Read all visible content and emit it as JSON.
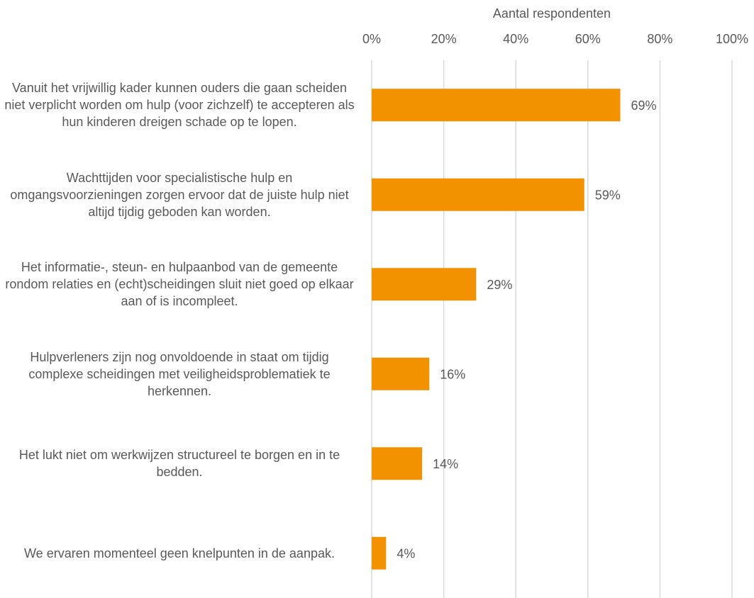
{
  "chart_data": {
    "type": "hbar",
    "xlabel": "Aantal respondenten",
    "categories": [
      "Vanuit het vrijwillig kader kunnen ouders die gaan scheiden niet verplicht worden om hulp (voor zichzelf) te accepteren als hun kinderen dreigen schade op te lopen.",
      "Wachttijden voor specialistische hulp en omgangsvoorzieningen zorgen ervoor dat de juiste hulp niet altijd tijdig geboden kan worden.",
      "Het informatie-, steun- en hulpaanbod van de gemeente rondom relaties en (echt)scheidingen sluit niet goed op elkaar aan of is incompleet.",
      "Hulpverleners zijn nog onvoldoende in staat om tijdig complexe scheidingen met veiligheidsproblematiek te herkennen.",
      "Het lukt niet om werkwijzen structureel te borgen en in te bedden.",
      "We ervaren momenteel geen knelpunten in de aanpak."
    ],
    "values": [
      69,
      59,
      29,
      16,
      14,
      4
    ],
    "value_labels": [
      "69%",
      "59%",
      "29%",
      "16%",
      "14%",
      "4%"
    ],
    "color": "#f39200",
    "xlim": [
      0,
      100
    ],
    "xticks": [
      {
        "value": 0,
        "label": "0%"
      },
      {
        "value": 20,
        "label": "20%"
      },
      {
        "value": 40,
        "label": "40%"
      },
      {
        "value": 60,
        "label": "60%"
      },
      {
        "value": 80,
        "label": "80%"
      },
      {
        "value": 100,
        "label": "100%"
      }
    ],
    "grid": true
  }
}
